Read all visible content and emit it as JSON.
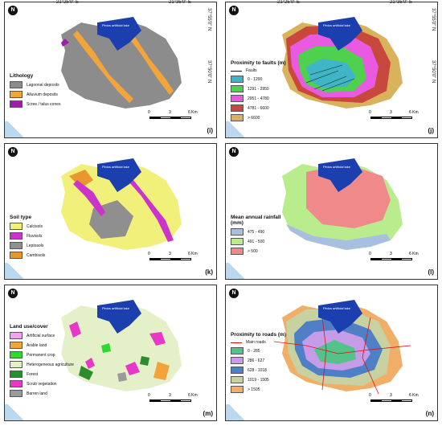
{
  "coords": {
    "lon1": "21°25'0\" E",
    "lon2": "21°35'0\" E",
    "lon1_alt": "21°25'0\" E",
    "lon2_alt": "21°35'0\" E",
    "lat1": "37°55'0\" N",
    "lat2": "37°50'0\" N"
  },
  "north_symbol": "N",
  "lake_label": "Pinios artificial lake",
  "scale": {
    "t0": "0",
    "t1": "3",
    "t2": "6 Km"
  },
  "panels": [
    {
      "id": "i",
      "label": "(i)",
      "legend_title": "Lithology",
      "items": [
        {
          "label": "Lagoonal deposits",
          "color": "#8c8c8c"
        },
        {
          "label": "Alluvium deposits",
          "color": "#f2a53a"
        },
        {
          "label": "Scree / talus cones",
          "color": "#9b1fa8"
        }
      ]
    },
    {
      "id": "j",
      "label": "(j)",
      "legend_title": "Proximity to faults (m)",
      "line_item": "Faults",
      "items": [
        {
          "label": "0 - 1290",
          "color": "#3fb6c6"
        },
        {
          "label": "1291 - 2950",
          "color": "#4fd04f"
        },
        {
          "label": "2951 - 4780",
          "color": "#e85ae0"
        },
        {
          "label": "4781 - 6600",
          "color": "#c8483e"
        },
        {
          "label": "> 6600",
          "color": "#d9b35c"
        }
      ]
    },
    {
      "id": "k",
      "label": "(k)",
      "legend_title": "Soil type",
      "items": [
        {
          "label": "Calcisols",
          "color": "#f0f07a"
        },
        {
          "label": "Fluvisols",
          "color": "#cc33cc"
        },
        {
          "label": "Leptosols",
          "color": "#8f8f8f"
        },
        {
          "label": "Cambisols",
          "color": "#e8962e"
        }
      ]
    },
    {
      "id": "l",
      "label": "(l)",
      "legend_title": "Mean annual rainfall (mm)",
      "items": [
        {
          "label": "475 - 490",
          "color": "#a9bfe0"
        },
        {
          "label": "491 - 500",
          "color": "#b9ec8c"
        },
        {
          "label": "> 500",
          "color": "#f08a8a"
        }
      ]
    },
    {
      "id": "m",
      "label": "(m)",
      "legend_title": "Land use/cover",
      "items": [
        {
          "label": "Artificial surface",
          "color": "#f2a0f2"
        },
        {
          "label": "Arable land",
          "color": "#f2a33a"
        },
        {
          "label": "Permanent crop",
          "color": "#2fd92f"
        },
        {
          "label": "Heterogeneous agriculture",
          "color": "#e4f0c8"
        },
        {
          "label": "Forest",
          "color": "#2e8b2e"
        },
        {
          "label": "Scrub vegetation",
          "color": "#e838c8"
        },
        {
          "label": "Barren land",
          "color": "#9a9a9a"
        }
      ]
    },
    {
      "id": "n",
      "label": "(n)",
      "legend_title": "Proximity to roads (m)",
      "line_item": "Main roads",
      "items": [
        {
          "label": "0 - 285",
          "color": "#55c28a"
        },
        {
          "label": "286 - 627",
          "color": "#c69be8"
        },
        {
          "label": "628 - 1018",
          "color": "#4f7fc4"
        },
        {
          "label": "1019 - 1505",
          "color": "#c8d2a0"
        },
        {
          "label": "> 1505",
          "color": "#f0ae68"
        }
      ]
    }
  ]
}
